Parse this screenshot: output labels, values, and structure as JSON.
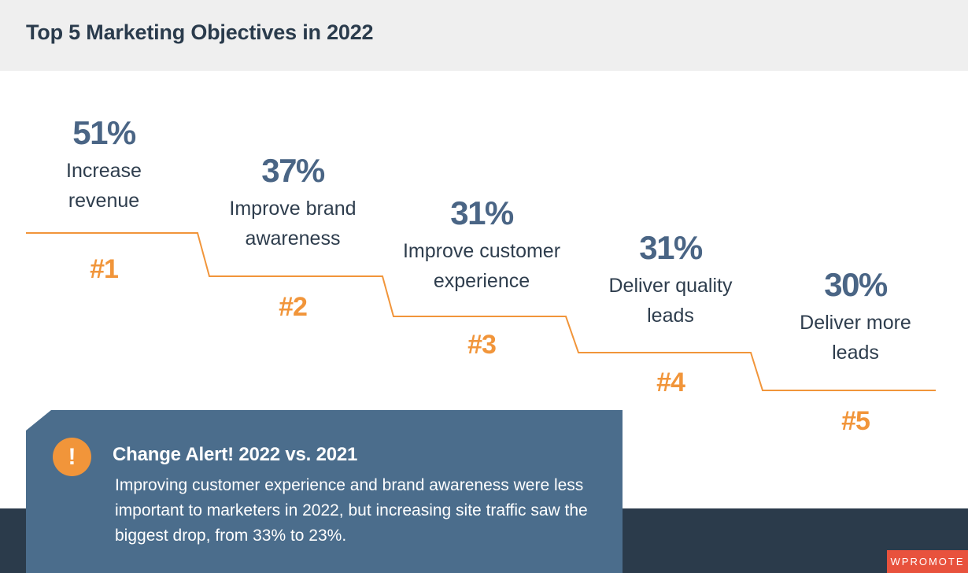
{
  "header": {
    "title": "Top 5 Marketing Objectives in 2022"
  },
  "chart_data": {
    "type": "table",
    "title": "Top 5 Marketing Objectives in 2022",
    "unit": "%",
    "items": [
      {
        "rank": "#1",
        "value": 51,
        "value_label": "51%",
        "label": "Increase\nrevenue"
      },
      {
        "rank": "#2",
        "value": 37,
        "value_label": "37%",
        "label": "Improve brand\nawareness"
      },
      {
        "rank": "#3",
        "value": 31,
        "value_label": "31%",
        "label": "Improve customer\nexperience"
      },
      {
        "rank": "#4",
        "value": 31,
        "value_label": "31%",
        "label": "Deliver quality\nleads"
      },
      {
        "rank": "#5",
        "value": 30,
        "value_label": "30%",
        "label": "Deliver more\nleads"
      }
    ]
  },
  "alert": {
    "icon": "exclamation-icon",
    "icon_glyph": "!",
    "title": "Change Alert! 2022 vs. 2021",
    "text": "Improving customer experience and brand awareness were less important to marketers in 2022, but increasing site traffic saw the biggest drop, from 33% to 23%."
  },
  "brand": {
    "logo_text": "WPROMOTE"
  },
  "colors": {
    "accent": "#f1953a",
    "value_blue": "#4a6585",
    "alert_bg": "#4b6d8c",
    "footer_bg": "#2b3b4b",
    "logo_bg": "#e8523d"
  }
}
